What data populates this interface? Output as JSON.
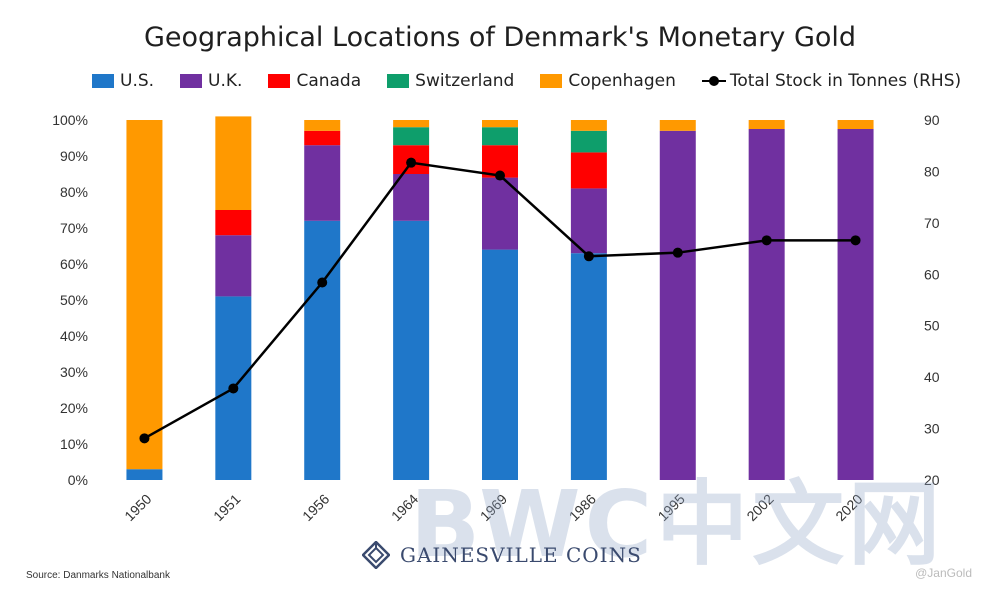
{
  "title": "Geographical Locations of Denmark's Monetary Gold",
  "colors": {
    "us": "#1f77c9",
    "uk": "#7030a0",
    "canada": "#ff0000",
    "switzerland": "#0e9e6b",
    "copenhagen": "#ff9900",
    "line": "#000000"
  },
  "chart_data": {
    "type": "bar",
    "stacked": true,
    "categories": [
      "1950",
      "1951",
      "1956",
      "1964",
      "1969",
      "1986",
      "1995",
      "2002",
      "2020"
    ],
    "series": [
      {
        "name": "U.S.",
        "color": "#1f77c9",
        "values": [
          3,
          51,
          72,
          72,
          64,
          63,
          0,
          0,
          0
        ]
      },
      {
        "name": "U.K.",
        "color": "#7030a0",
        "values": [
          0,
          17,
          21,
          13,
          20,
          18,
          97,
          97.5,
          97.5
        ]
      },
      {
        "name": "Canada",
        "color": "#ff0000",
        "values": [
          0,
          7,
          4,
          8,
          9,
          10,
          0,
          0,
          0
        ]
      },
      {
        "name": "Switzerland",
        "color": "#0e9e6b",
        "values": [
          0,
          0,
          0,
          5,
          5,
          6,
          0,
          0,
          0
        ]
      },
      {
        "name": "Copenhagen",
        "color": "#ff9900",
        "values": [
          97,
          26,
          3,
          2,
          2,
          3,
          3,
          2.5,
          2.5
        ]
      }
    ],
    "line_series": {
      "name": "Total Stock in Tonnes (RHS)",
      "color": "#000000",
      "axis": "right",
      "values": [
        28.1,
        37.8,
        58.4,
        81.7,
        79.2,
        63.5,
        64.2,
        66.6,
        66.6
      ]
    },
    "y_left": {
      "ticks": [
        "0%",
        "10%",
        "20%",
        "30%",
        "40%",
        "50%",
        "60%",
        "70%",
        "80%",
        "90%",
        "100%"
      ],
      "min": 0,
      "max": 100
    },
    "y_right": {
      "ticks": [
        "20",
        "30",
        "40",
        "50",
        "60",
        "70",
        "80",
        "90"
      ],
      "min": 20,
      "max": 90
    },
    "legend_position": "top"
  },
  "legend": {
    "us": "U.S.",
    "uk": "U.K.",
    "canada": "Canada",
    "switzerland": "Switzerland",
    "copenhagen": "Copenhagen",
    "line": "Total Stock in Tonnes (RHS)"
  },
  "watermark": "BWC中文网",
  "logo_text": "GAINESVILLE COINS",
  "source": "Source: Danmarks Nationalbank",
  "credit": "@JanGold"
}
